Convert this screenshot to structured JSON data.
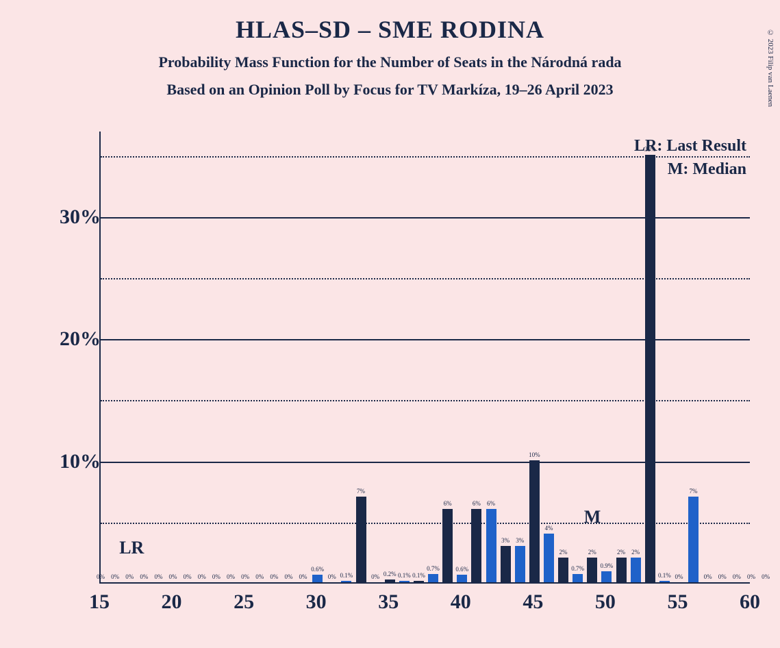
{
  "title": "HLAS–SD – SME RODINA",
  "subtitle1": "Probability Mass Function for the Number of Seats in the Národná rada",
  "subtitle2": "Based on an Opinion Poll by Focus for TV Markíza, 19–26 April 2023",
  "copyright": "© 2023 Filip van Laenen",
  "legend_lr": "LR: Last Result",
  "legend_m": "M: Median",
  "annotation_lr": "LR",
  "annotation_m": "M",
  "chart": {
    "type": "bar",
    "background_color": "#fbe5e6",
    "axis_color": "#1a2847",
    "text_color": "#1a2847",
    "color_dark": "#1a2847",
    "color_light": "#1f62c9",
    "ylim": [
      0,
      37
    ],
    "y_ticks": [
      10,
      20,
      30
    ],
    "y_minor_ticks": [
      5,
      15,
      25,
      35
    ],
    "xlim": [
      15,
      60
    ],
    "x_ticks": [
      15,
      20,
      25,
      30,
      35,
      40,
      45,
      50,
      55,
      60
    ],
    "lr_position": 17,
    "m_position": 49,
    "bars": [
      {
        "x": 15,
        "value": 0,
        "label": "0%",
        "color": "dark"
      },
      {
        "x": 16,
        "value": 0,
        "label": "0%",
        "color": "light"
      },
      {
        "x": 17,
        "value": 0,
        "label": "0%",
        "color": "dark"
      },
      {
        "x": 18,
        "value": 0,
        "label": "0%",
        "color": "light"
      },
      {
        "x": 19,
        "value": 0,
        "label": "0%",
        "color": "dark"
      },
      {
        "x": 20,
        "value": 0,
        "label": "0%",
        "color": "light"
      },
      {
        "x": 21,
        "value": 0,
        "label": "0%",
        "color": "dark"
      },
      {
        "x": 22,
        "value": 0,
        "label": "0%",
        "color": "light"
      },
      {
        "x": 23,
        "value": 0,
        "label": "0%",
        "color": "dark"
      },
      {
        "x": 24,
        "value": 0,
        "label": "0%",
        "color": "light"
      },
      {
        "x": 25,
        "value": 0,
        "label": "0%",
        "color": "dark"
      },
      {
        "x": 26,
        "value": 0,
        "label": "0%",
        "color": "light"
      },
      {
        "x": 27,
        "value": 0,
        "label": "0%",
        "color": "dark"
      },
      {
        "x": 28,
        "value": 0,
        "label": "0%",
        "color": "light"
      },
      {
        "x": 29,
        "value": 0,
        "label": "0%",
        "color": "dark"
      },
      {
        "x": 30,
        "value": 0.6,
        "label": "0.6%",
        "color": "light"
      },
      {
        "x": 31,
        "value": 0,
        "label": "0%",
        "color": "dark"
      },
      {
        "x": 32,
        "value": 0.1,
        "label": "0.1%",
        "color": "light"
      },
      {
        "x": 33,
        "value": 7,
        "label": "7%",
        "color": "dark"
      },
      {
        "x": 34,
        "value": 0,
        "label": "0%",
        "color": "light"
      },
      {
        "x": 35,
        "value": 0.2,
        "label": "0.2%",
        "color": "dark"
      },
      {
        "x": 36,
        "value": 0.1,
        "label": "0.1%",
        "color": "light"
      },
      {
        "x": 37,
        "value": 0.1,
        "label": "0.1%",
        "color": "dark"
      },
      {
        "x": 38,
        "value": 0.7,
        "label": "0.7%",
        "color": "light"
      },
      {
        "x": 39,
        "value": 6,
        "label": "6%",
        "color": "dark"
      },
      {
        "x": 40,
        "value": 0.6,
        "label": "0.6%",
        "color": "light"
      },
      {
        "x": 41,
        "value": 6,
        "label": "6%",
        "color": "dark"
      },
      {
        "x": 42,
        "value": 6,
        "label": "6%",
        "color": "light"
      },
      {
        "x": 43,
        "value": 3,
        "label": "3%",
        "color": "dark"
      },
      {
        "x": 44,
        "value": 3,
        "label": "3%",
        "color": "light"
      },
      {
        "x": 45,
        "value": 10,
        "label": "10%",
        "color": "dark"
      },
      {
        "x": 46,
        "value": 4,
        "label": "4%",
        "color": "light"
      },
      {
        "x": 47,
        "value": 2,
        "label": "2%",
        "color": "dark"
      },
      {
        "x": 48,
        "value": 0.7,
        "label": "0.7%",
        "color": "light"
      },
      {
        "x": 49,
        "value": 2,
        "label": "2%",
        "color": "dark"
      },
      {
        "x": 50,
        "value": 0.9,
        "label": "0.9%",
        "color": "light"
      },
      {
        "x": 51,
        "value": 2,
        "label": "2%",
        "color": "dark"
      },
      {
        "x": 52,
        "value": 2,
        "label": "2%",
        "color": "light"
      },
      {
        "x": 53,
        "value": 35,
        "label": "35%",
        "color": "dark"
      },
      {
        "x": 54,
        "value": 0.1,
        "label": "0.1%",
        "color": "light"
      },
      {
        "x": 55,
        "value": 0,
        "label": "0%",
        "color": "dark"
      },
      {
        "x": 56,
        "value": 7,
        "label": "7%",
        "color": "light"
      },
      {
        "x": 57,
        "value": 0,
        "label": "0%",
        "color": "dark"
      },
      {
        "x": 58,
        "value": 0,
        "label": "0%",
        "color": "light"
      },
      {
        "x": 59,
        "value": 0,
        "label": "0%",
        "color": "dark"
      },
      {
        "x": 60,
        "value": 0,
        "label": "0%",
        "color": "light"
      },
      {
        "x": 61,
        "value": 0,
        "label": "0%",
        "color": "dark"
      }
    ]
  }
}
